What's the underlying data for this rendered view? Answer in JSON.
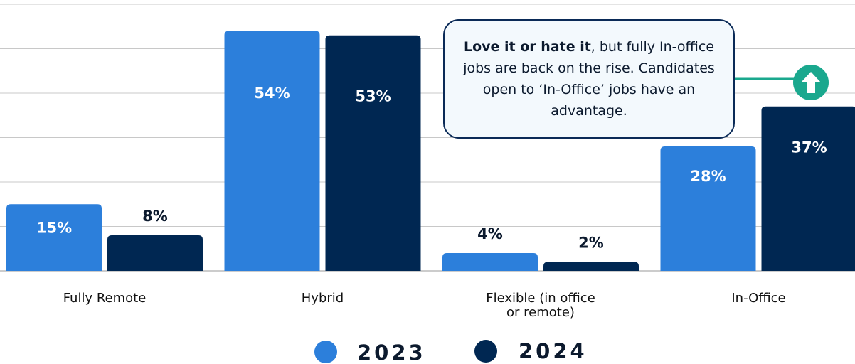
{
  "chart_data": {
    "type": "bar",
    "categories": [
      "Fully Remote",
      "Hybrid",
      "Flexible (in office or remote)",
      "In-Office"
    ],
    "category_lines": [
      [
        "Fully Remote"
      ],
      [
        "Hybrid"
      ],
      [
        "Flexible (in office",
        "or remote)"
      ],
      [
        "In-Office"
      ]
    ],
    "series": [
      {
        "name": "2023",
        "values": [
          15,
          54,
          4,
          28
        ],
        "labels": [
          "15%",
          "54%",
          "4%",
          "28%"
        ],
        "color": "#2c7fdb"
      },
      {
        "name": "2024",
        "values": [
          8,
          53,
          2,
          37
        ],
        "labels": [
          "8%",
          "53%",
          "2%",
          "37%"
        ],
        "color": "#002752"
      }
    ],
    "ylim": [
      0,
      60
    ],
    "grid": true,
    "legend": "bottom-center"
  },
  "callout": {
    "bold": "Love it or hate it",
    "text": ", but fully In-office jobs are back on the rise. Candidates open to ‘In-Office’ jobs have an advantage.",
    "accent_color": "#1aa88e",
    "icon": "up-arrow-icon"
  },
  "colors": {
    "grid": "#c8c8c8",
    "label_on_bar": "#ffffff",
    "label_above": "#0c1a2e"
  }
}
